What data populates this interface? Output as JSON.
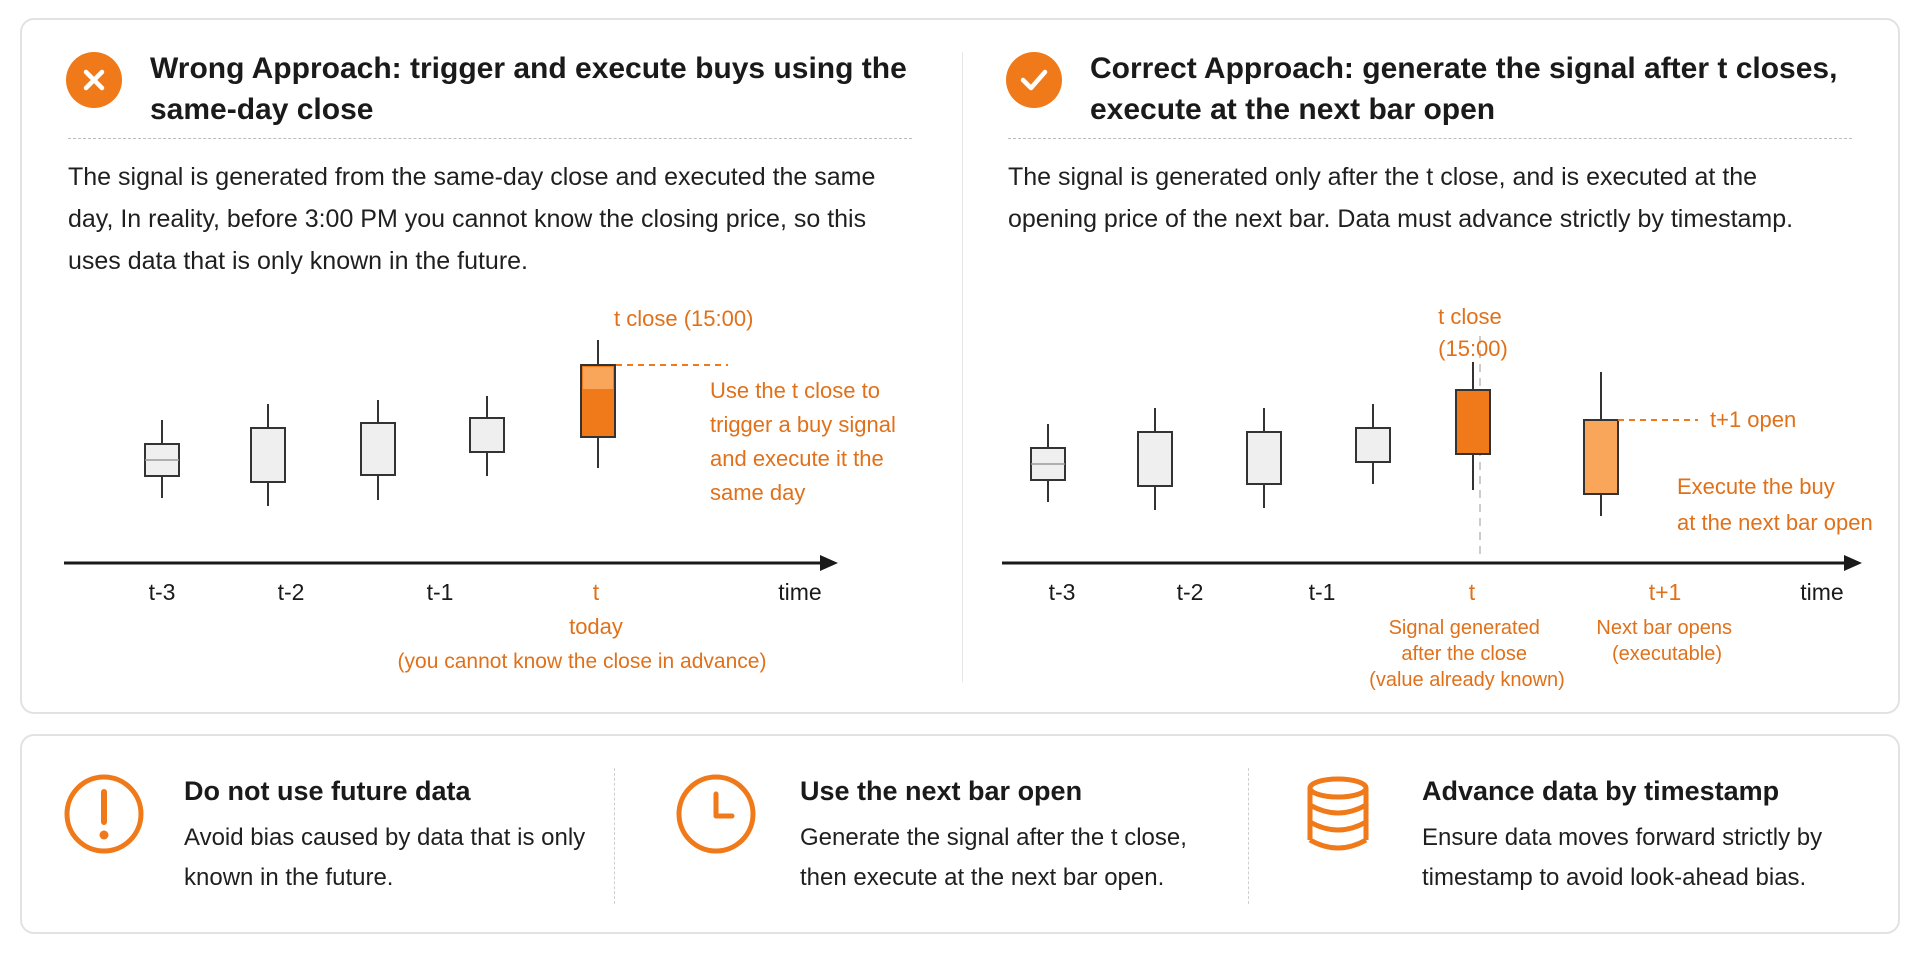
{
  "colors": {
    "accent": "#f07a1a",
    "accent_light": "#f9a55a",
    "neutral_candle": "#efefef",
    "text": "#1a1a1a"
  },
  "wrong": {
    "icon": "x-circle-icon",
    "title_strong": "Wrong Approach:",
    "title_rest": " trigger and execute buys using the same-day close",
    "description": "The signal is generated from the same-day close and executed the same day, In reality, before 3:00 PM you cannot know the closing price, so this uses data that is only known in the future.",
    "chart": {
      "tick_labels": [
        "t-3",
        "t-2",
        "t-1",
        "t"
      ],
      "axis_end_label": "time",
      "close_label": "t close (15:00)",
      "annotation": [
        "Use the t close to",
        "trigger a buy signal",
        "and execute it the",
        "same day"
      ],
      "today_label": "today",
      "note": "(you cannot know the close in advance)"
    }
  },
  "correct": {
    "icon": "check-circle-icon",
    "title_strong": "Correct Approach:",
    "title_rest": " generate the signal after t closes, execute at the next bar open",
    "description": "The signal is generated only after the t close, and is executed at the opening price of the next bar. Data must advance strictly by timestamp.",
    "chart": {
      "tick_labels": [
        "t-3",
        "t-2",
        "t-1",
        "t",
        "t+1"
      ],
      "axis_end_label": "time",
      "close_label": [
        "t close",
        "(15:00)"
      ],
      "open_label": "t+1 open",
      "annotation": [
        "Execute the buy",
        "at the next bar open"
      ],
      "t_note": [
        "Signal generated",
        "after the close",
        "(value already known)"
      ],
      "t1_note": [
        "Next bar opens",
        "(executable)"
      ]
    }
  },
  "tips": [
    {
      "icon": "exclamation-circle-icon",
      "title": "Do not use future data",
      "text": "Avoid bias caused by data that is only known in the future."
    },
    {
      "icon": "clock-icon",
      "title": "Use the next bar open",
      "text": "Generate the signal after the t close, then execute at the next bar open."
    },
    {
      "icon": "database-icon",
      "title": "Advance data by timestamp",
      "text": "Ensure data moves forward strictly by timestamp to avoid look-ahead bias."
    }
  ]
}
